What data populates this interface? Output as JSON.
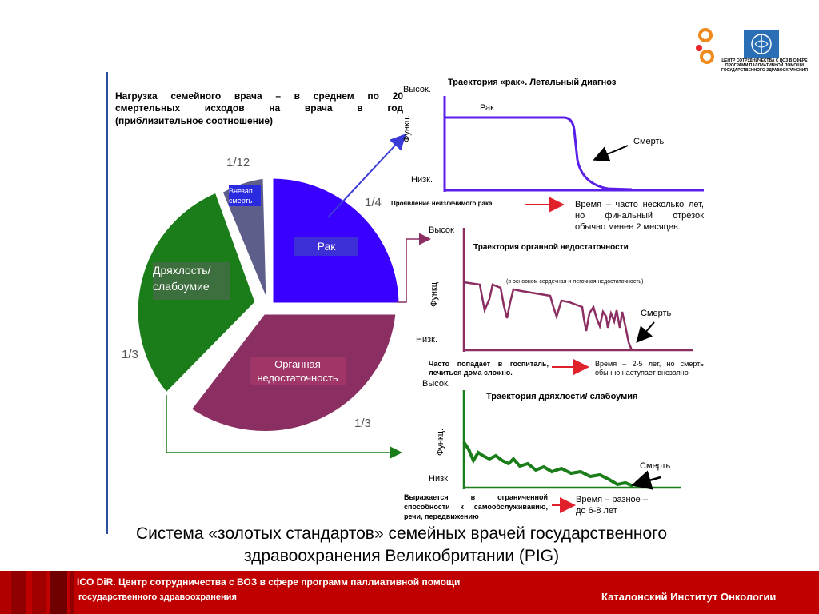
{
  "header": {
    "logos": [
      "orange-circles-logo",
      "who-emblem"
    ],
    "who_caption": "ЦЕНТР СОТРУДНИЧЕСТВА С ВОЗ В СФЕРЕ ПРОГРАММ ПАЛЛИАТИВНОЙ ПОМОЩИ ГОСУДАРСТВЕННОГО ЗДРАВООХРАНЕНИЯ"
  },
  "intro": {
    "lines": [
      "Нагрузка семейного врача – в среднем по 20",
      "смертельных исходов на врача в год",
      "(приблизительное соотношение)"
    ]
  },
  "pie": {
    "slices": [
      {
        "label": "Рак",
        "fraction_text": "1/4",
        "value": 0.25,
        "color": "#3a00ff"
      },
      {
        "label": "Органная недостаточность",
        "fraction_text": "1/3",
        "value": 0.333,
        "color": "#8b2e61"
      },
      {
        "label": "Дряхлость/ слабоумие",
        "fraction_text": "1/3",
        "value": 0.333,
        "color": "#1a7d1a"
      },
      {
        "label": "Внезап. смерть",
        "fraction_text": "1/12",
        "value": 0.083,
        "color": "#5e5e8a"
      }
    ],
    "labels": {
      "cancer": "Рак",
      "organ_1": "Органная",
      "organ_2": "недостаточность",
      "frailty_1": "Дряхлость/",
      "frailty_2": "слабоумие",
      "sudden_1": "Внезап.",
      "sudden_2": "смерть",
      "frac_cancer": "1/4",
      "frac_organ": "1/3",
      "frac_frailty": "1/3",
      "frac_sudden": "1/12"
    }
  },
  "traj_cancer": {
    "title": "Траектория «рак». Летальный диагноз",
    "high": "Высок.",
    "low": "Низк.",
    "ylabel": "Функц.",
    "curve_label": "Рак",
    "death": "Смерть",
    "onset": "Проявление неизлечимого рака",
    "time_lines": [
      "Время – часто несколько лет,",
      "но финальный отрезок",
      "обычно менее 2 месяцев."
    ],
    "color": "#5a1ee8"
  },
  "traj_organ": {
    "title": "Траектория органной недостаточности",
    "high": "Высок",
    "low": "Низк.",
    "ylabel": "Функц.",
    "note": "(в основном сердечная и легочная недостаточность)",
    "death": "Смерть",
    "cause_lines": [
      "Часто попадает в госпиталь,",
      "лечиться дома сложно."
    ],
    "time_lines": [
      "Время – 2-5 лет, но смерть",
      "обычно наступает внезапно"
    ],
    "color": "#8b2e61"
  },
  "traj_frailty": {
    "title": "Траектория дряхлости/ слабоумия",
    "high": "Высок.",
    "low": "Низк.",
    "ylabel": "Функц.",
    "death": "Смерть",
    "cause_lines": [
      "Выражается в ограниченной",
      "способности к самообслуживанию,",
      "речи, передвижению"
    ],
    "time_lines": [
      "Время – разное –",
      "до 6-8 лет"
    ],
    "color": "#1a7d1a"
  },
  "caption": {
    "line1": "Система «золотых стандартов» семейных врачей государственного",
    "line2": "здравоохранения Великобритании (PIG)"
  },
  "footer": {
    "left_1": "ICO DiR. Центр сотрудничества с ВОЗ в сфере программ паллиативной помощи",
    "left_2": "государственного здравоохранения",
    "right": "Каталонский Институт Онкологии",
    "bg_color": "#c00000"
  }
}
